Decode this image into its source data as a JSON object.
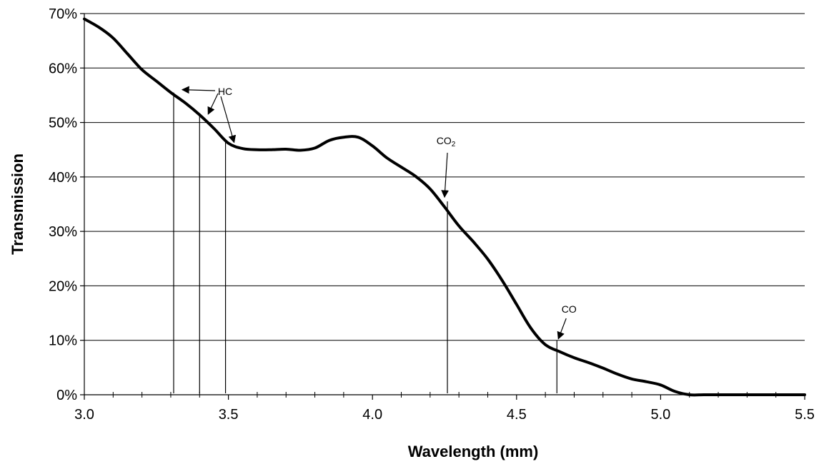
{
  "chart_data": {
    "type": "line",
    "xlabel": "Wavelength (mm)",
    "ylabel": "Transmission",
    "xlim": [
      3.0,
      5.5
    ],
    "ylim": [
      0,
      70
    ],
    "x_ticks": [
      3.0,
      3.5,
      4.0,
      4.5,
      5.0,
      5.5
    ],
    "x_tick_labels": [
      "3.0",
      "3.5",
      "4.0",
      "4.5",
      "5.0",
      "5.5"
    ],
    "y_ticks": [
      0,
      10,
      20,
      30,
      40,
      50,
      60,
      70
    ],
    "y_tick_labels": [
      "0%",
      "10%",
      "20%",
      "30%",
      "40%",
      "50%",
      "60%",
      "70%"
    ],
    "x_minor_step": 0.1,
    "grid": "horizontal",
    "legend": "none",
    "series": [
      {
        "x": [
          3.0,
          3.05,
          3.1,
          3.15,
          3.2,
          3.25,
          3.3,
          3.35,
          3.4,
          3.45,
          3.5,
          3.55,
          3.6,
          3.65,
          3.7,
          3.75,
          3.8,
          3.85,
          3.9,
          3.95,
          4.0,
          4.05,
          4.1,
          4.15,
          4.2,
          4.25,
          4.3,
          4.35,
          4.4,
          4.45,
          4.5,
          4.55,
          4.6,
          4.65,
          4.7,
          4.75,
          4.8,
          4.85,
          4.9,
          4.95,
          5.0,
          5.05,
          5.1,
          5.15,
          5.2,
          5.3,
          5.4,
          5.5
        ],
        "values": [
          69.0,
          67.5,
          65.5,
          62.6,
          59.7,
          57.6,
          55.5,
          53.6,
          51.4,
          48.9,
          46.2,
          45.2,
          45.0,
          45.0,
          45.1,
          44.9,
          45.3,
          46.7,
          47.3,
          47.3,
          45.7,
          43.5,
          41.8,
          40.1,
          37.8,
          34.5,
          31.0,
          28.1,
          24.9,
          21.0,
          16.6,
          12.2,
          9.2,
          7.9,
          6.8,
          5.9,
          4.9,
          3.8,
          2.9,
          2.4,
          1.8,
          0.6,
          0.0,
          0.0,
          0.0,
          0.0,
          0.0,
          0.0
        ]
      }
    ],
    "annotations": [
      {
        "label": "HC",
        "subscript": "",
        "markers": [
          3.31,
          3.4,
          3.49
        ],
        "marker_tops": [
          55.5,
          51.4,
          46.6
        ]
      },
      {
        "label": "CO",
        "subscript": "2",
        "markers": [
          4.26
        ],
        "marker_tops": [
          35.5
        ]
      },
      {
        "label": "CO",
        "subscript": "",
        "markers": [
          4.64
        ],
        "marker_tops": [
          10.0
        ]
      }
    ]
  }
}
